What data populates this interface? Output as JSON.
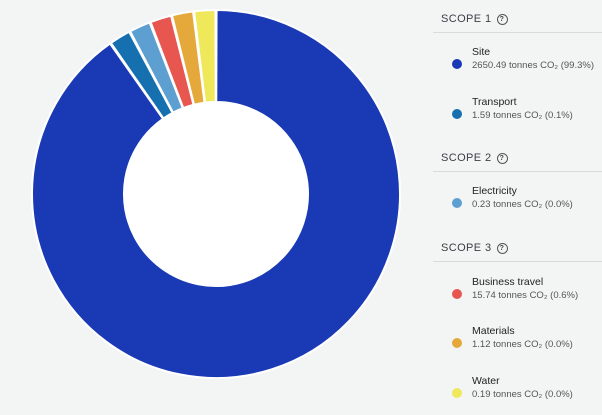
{
  "chart_data": {
    "type": "pie",
    "title": "",
    "slices": [
      {
        "name": "Site",
        "value": 2650.49,
        "percent_label": "99.3%",
        "color": "#1a39b5"
      },
      {
        "name": "Transport",
        "value": 1.59,
        "percent_label": "0.1%",
        "color": "#166fae"
      },
      {
        "name": "Electricity",
        "value": 0.23,
        "percent_label": "0.0%",
        "color": "#5d9fd0"
      },
      {
        "name": "Business travel",
        "value": 15.74,
        "percent_label": "0.6%",
        "color": "#e85650"
      },
      {
        "name": "Materials",
        "value": 1.12,
        "percent_label": "0.0%",
        "color": "#e4a93a"
      },
      {
        "name": "Water",
        "value": 0.19,
        "percent_label": "0.0%",
        "color": "#eee85a"
      }
    ],
    "donut": true,
    "legend_position": "right"
  },
  "legend": {
    "help_icon": "help-circle-icon",
    "scopes": [
      {
        "label": "SCOPE 1",
        "items": [
          {
            "name": "Site",
            "value_text": "2650.49 tonnes CO₂ (99.3%)",
            "color": "#1a39b5"
          },
          {
            "name": "Transport",
            "value_text": "1.59 tonnes CO₂ (0.1%)",
            "color": "#166fae"
          }
        ]
      },
      {
        "label": "SCOPE 2",
        "items": [
          {
            "name": "Electricity",
            "value_text": "0.23 tonnes CO₂ (0.0%)",
            "color": "#5d9fd0"
          }
        ]
      },
      {
        "label": "SCOPE 3",
        "items": [
          {
            "name": "Business travel",
            "value_text": "15.74 tonnes CO₂ (0.6%)",
            "color": "#e85650"
          },
          {
            "name": "Materials",
            "value_text": "1.12 tonnes CO₂ (0.0%)",
            "color": "#e4a93a"
          },
          {
            "name": "Water",
            "value_text": "0.19 tonnes CO₂ (0.0%)",
            "color": "#eee85a"
          }
        ]
      }
    ]
  }
}
